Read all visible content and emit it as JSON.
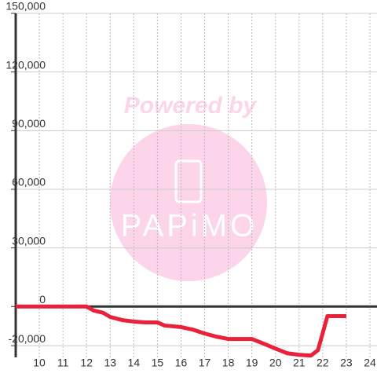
{
  "chart_data": {
    "type": "line",
    "watermark": {
      "line1": "Powered by",
      "line2": "PAPiMO"
    },
    "x": [
      9,
      12,
      12.3,
      12.7,
      13,
      13.5,
      14,
      14.5,
      15,
      15.3,
      16,
      16.5,
      17,
      17.5,
      18,
      19,
      19.5,
      20,
      20.5,
      21,
      21.5,
      21.8,
      22.2,
      23
    ],
    "series": [
      {
        "color": "#e8223a",
        "values": [
          0,
          0,
          -2000,
          -3200,
          -5300,
          -6900,
          -7700,
          -8100,
          -8100,
          -9700,
          -10500,
          -11800,
          -13800,
          -15400,
          -16600,
          -16600,
          -19000,
          -21500,
          -23900,
          -24700,
          -25100,
          -22300,
          -4900,
          -4900
        ]
      }
    ],
    "xlim": [
      9,
      24.3
    ],
    "xticks": [
      10,
      11,
      12,
      13,
      14,
      15,
      16,
      17,
      18,
      19,
      20,
      21,
      22,
      23,
      24
    ],
    "ylim": [
      -26000,
      150000
    ],
    "yticks": [
      {
        "value": -20000,
        "label": "-20,000"
      },
      {
        "value": 0,
        "label": "0"
      },
      {
        "value": 30000,
        "label": "30,000"
      },
      {
        "value": 60000,
        "label": "60,000"
      },
      {
        "value": 90000,
        "label": "90,000"
      },
      {
        "value": 120000,
        "label": "120,000"
      },
      {
        "value": 150000,
        "label": "150,000"
      }
    ],
    "grid": true
  }
}
